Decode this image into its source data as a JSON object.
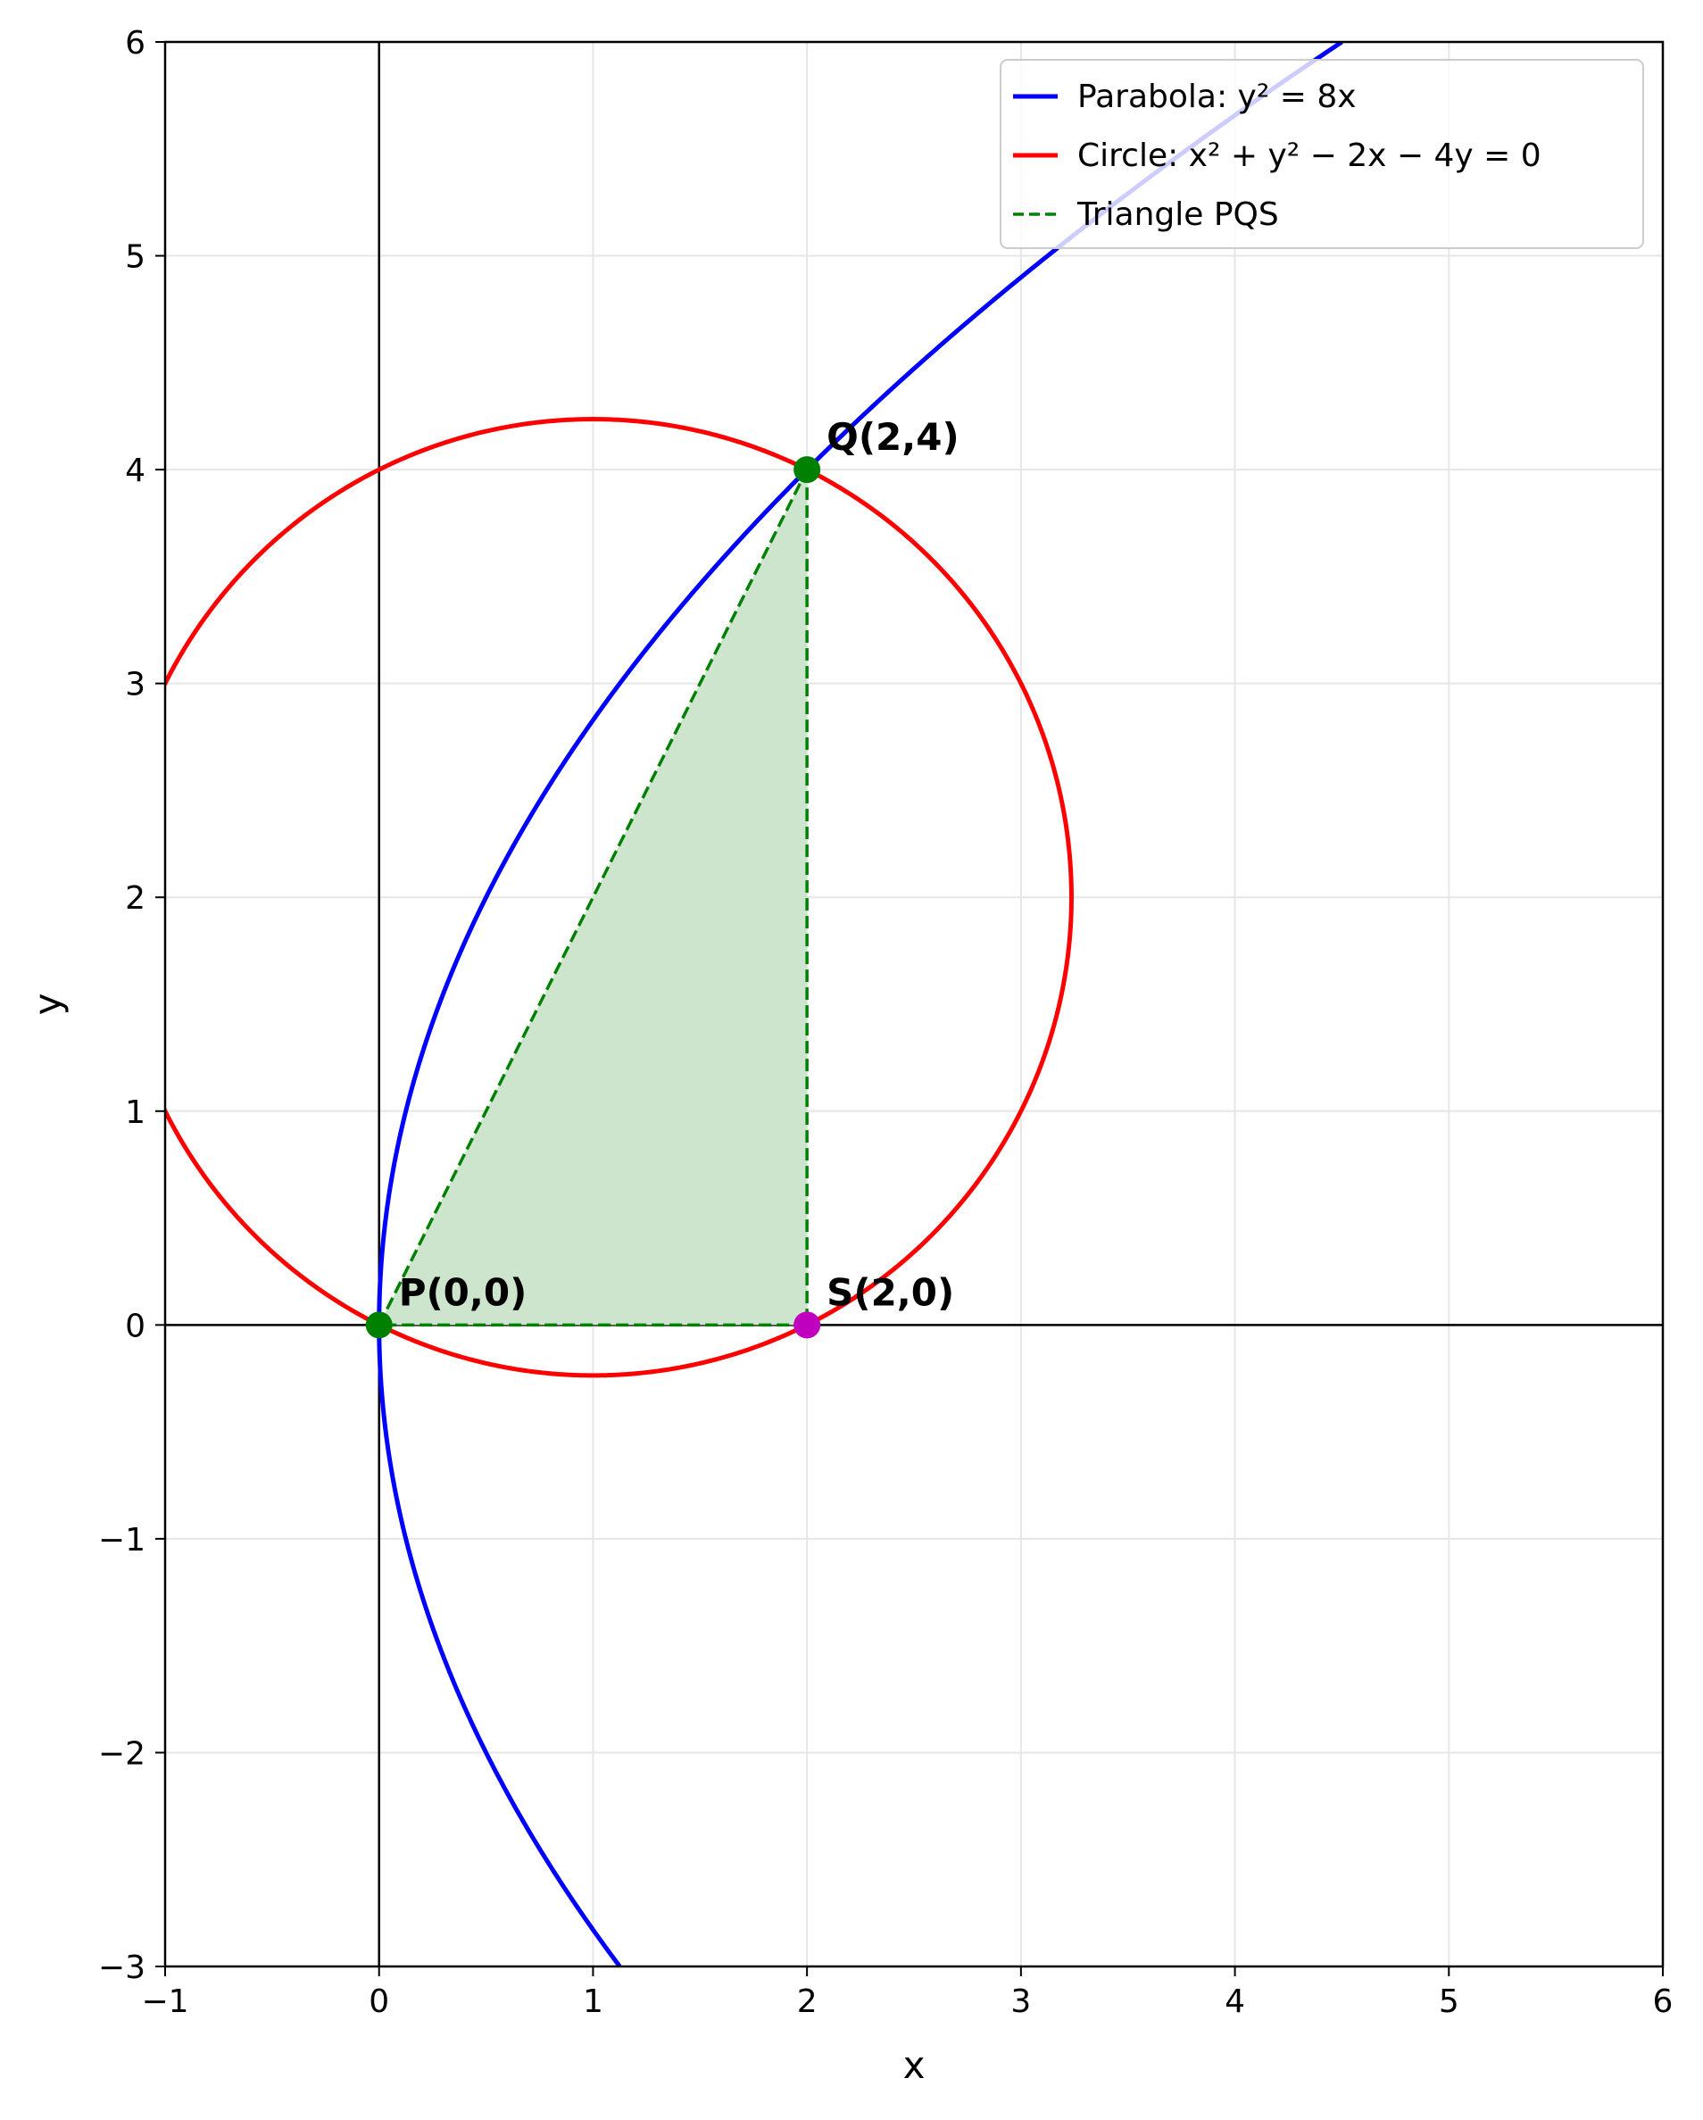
{
  "chart_data": {
    "type": "line",
    "title": "",
    "xlabel": "x",
    "ylabel": "y",
    "xlim": [
      -1,
      6
    ],
    "ylim": [
      -3,
      6
    ],
    "xticks": [
      -1,
      0,
      1,
      2,
      3,
      4,
      5,
      6
    ],
    "yticks": [
      -3,
      -2,
      -1,
      0,
      1,
      2,
      3,
      4,
      5,
      6
    ],
    "xtick_labels": [
      "−1",
      "0",
      "1",
      "2",
      "3",
      "4",
      "5",
      "6"
    ],
    "ytick_labels": [
      "−3",
      "−2",
      "−1",
      "0",
      "1",
      "2",
      "3",
      "4",
      "5",
      "6"
    ],
    "grid": true,
    "legend_position": "top-right",
    "series": [
      {
        "name": "Parabola: y² = 8x",
        "equation": "y^2 = 8x",
        "color": "#0000ff"
      },
      {
        "name": "Circle: x² + y² − 2x − 4y = 0",
        "equation": "x^2 + y^2 - 2x - 4y = 0",
        "color": "#ff0000"
      },
      {
        "name": "Triangle PQS",
        "vertices": [
          [
            0,
            0
          ],
          [
            2,
            4
          ],
          [
            2,
            0
          ]
        ],
        "color": "#008000",
        "style": "dashed",
        "fill": "#cde5cd"
      }
    ],
    "points": [
      {
        "label": "P(0,0)",
        "x": 0,
        "y": 0,
        "color": "#008000"
      },
      {
        "label": "Q(2,4)",
        "x": 2,
        "y": 4,
        "color": "#008000"
      },
      {
        "label": "S(2,0)",
        "x": 2,
        "y": 0,
        "color": "#bf00bf"
      }
    ]
  }
}
